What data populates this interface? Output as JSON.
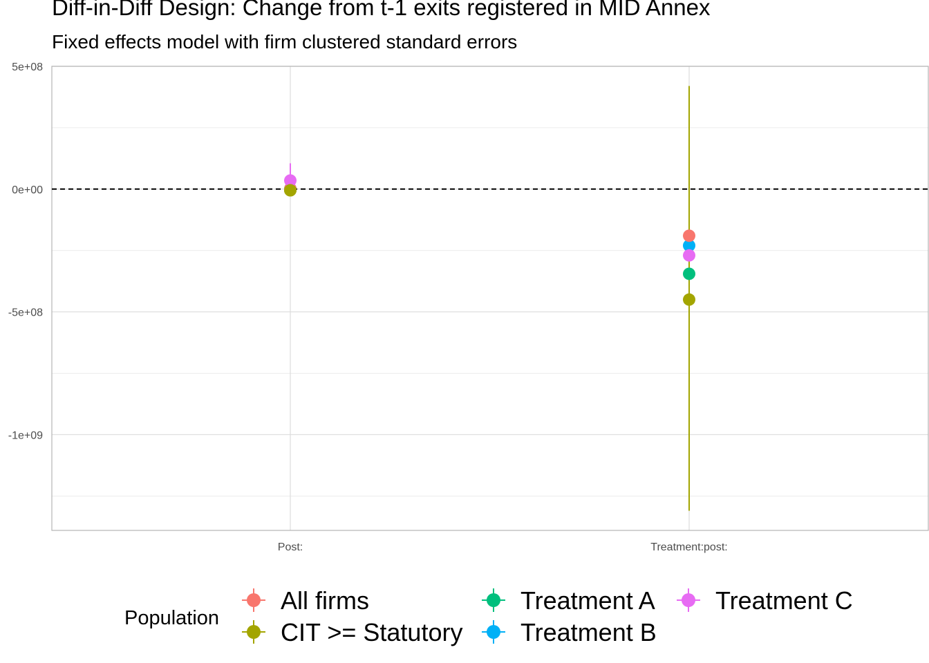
{
  "chart_data": {
    "type": "scatter",
    "title": "Diff-in-Diff Design: Change from t-1 exits registered in MID Annex",
    "subtitle": "Fixed effects model with firm clustered standard errors",
    "xlabel": "",
    "ylabel": "",
    "categories": [
      "Post:",
      "Treatment:post:"
    ],
    "ylim": [
      -1390000000.0,
      500000000.0
    ],
    "yticks": [
      500000000.0,
      0,
      -500000000.0,
      -1000000000.0
    ],
    "ytick_labels": [
      "5e+08",
      "0e+00",
      "-5e+08",
      "-1e+09"
    ],
    "reference_line": {
      "y": 0,
      "style": "dashed"
    },
    "grid": true,
    "legend": {
      "title": "Population",
      "position": "bottom"
    },
    "series": [
      {
        "name": "All firms",
        "color": "#F8766D",
        "points": [
          {
            "x": "Post:",
            "y": 1000000,
            "lo": 1000000,
            "hi": 1000000
          },
          {
            "x": "Treatment:post:",
            "y": -190000000,
            "lo": -190000000,
            "hi": -190000000
          }
        ]
      },
      {
        "name": "CIT >= Statutory",
        "color": "#A3A500",
        "points": [
          {
            "x": "Post:",
            "y": -5000000,
            "lo": -5000000,
            "hi": -5000000
          },
          {
            "x": "Treatment:post:",
            "y": -450000000,
            "lo": -1310000000,
            "hi": 420000000
          }
        ]
      },
      {
        "name": "Treatment A",
        "color": "#00BF7D",
        "points": [
          {
            "x": "Post:",
            "y": 1000000,
            "lo": 1000000,
            "hi": 1000000
          },
          {
            "x": "Treatment:post:",
            "y": -345000000,
            "lo": -345000000,
            "hi": -345000000
          }
        ]
      },
      {
        "name": "Treatment B",
        "color": "#00B0F6",
        "points": [
          {
            "x": "Post:",
            "y": 1000000,
            "lo": 1000000,
            "hi": 1000000
          },
          {
            "x": "Treatment:post:",
            "y": -230000000,
            "lo": -230000000,
            "hi": -230000000
          }
        ]
      },
      {
        "name": "Treatment C",
        "color": "#E76BF3",
        "points": [
          {
            "x": "Post:",
            "y": 35000000,
            "lo": -20000000,
            "hi": 105000000
          },
          {
            "x": "Treatment:post:",
            "y": -270000000,
            "lo": -270000000,
            "hi": -270000000
          }
        ]
      }
    ]
  }
}
